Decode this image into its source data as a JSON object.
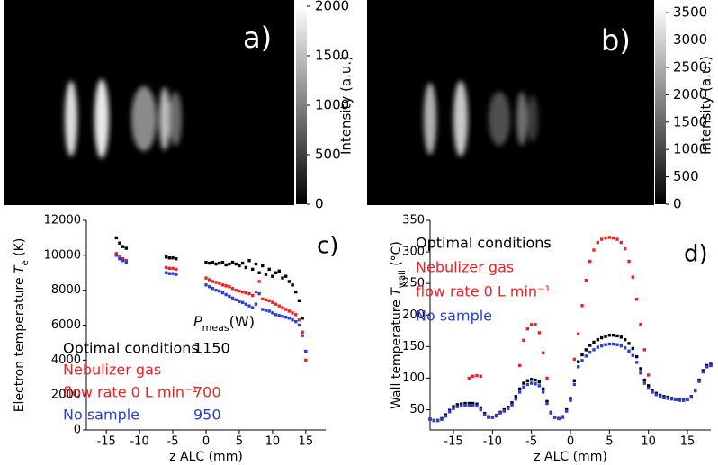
{
  "chart_data": [
    {
      "type": "image",
      "label": "a)",
      "colorbar_label": "Intensity (a.u.)",
      "clim": [
        0,
        2000
      ],
      "cticks": [
        0,
        500,
        1000,
        1500,
        2000
      ]
    },
    {
      "type": "image",
      "label": "b)",
      "colorbar_label": "Intensity (a.u.)",
      "clim": [
        0,
        3650
      ],
      "cticks": [
        0,
        500,
        1000,
        1500,
        2000,
        2500,
        3000,
        3500
      ]
    },
    {
      "type": "scatter",
      "label": "c)",
      "xlabel": "z ALC (mm)",
      "ylabel": [
        "Electron temperature ",
        "T",
        "e",
        " (K)"
      ],
      "power_header": [
        "P",
        "meas",
        "(W)"
      ],
      "xlim": [
        -18,
        18
      ],
      "ylim": [
        0,
        12000
      ],
      "xticks": [
        -15,
        -10,
        -5,
        0,
        5,
        10,
        15
      ],
      "yticks": [
        0,
        2000,
        4000,
        6000,
        8000,
        10000,
        12000
      ],
      "x": [
        -13.5,
        -13,
        -12.5,
        -12,
        -6,
        -5.5,
        -5,
        -4.5,
        0,
        0.5,
        1,
        1.5,
        2,
        2.5,
        3,
        3.5,
        4,
        4.5,
        5,
        5.5,
        6,
        6.5,
        7,
        7.5,
        8,
        8.5,
        9,
        9.5,
        10,
        10.5,
        11,
        11.5,
        12,
        12.5,
        13,
        13.5,
        14,
        14.5,
        15
      ],
      "series": [
        {
          "name": [
            "Optimal conditions"
          ],
          "color": "#000000",
          "power": 1150,
          "values": [
            11000,
            10700,
            10500,
            10400,
            9900,
            9850,
            9850,
            9800,
            9600,
            9550,
            9600,
            9500,
            9550,
            9600,
            9450,
            9500,
            9600,
            9500,
            9400,
            9550,
            9300,
            9700,
            9200,
            9500,
            9000,
            9400,
            8900,
            9200,
            8800,
            9000,
            9100,
            8700,
            8800,
            8500,
            8300,
            7900,
            7400,
            6400,
            4500
          ]
        },
        {
          "name": [
            "Nebulizer gas",
            "flow rate 0 L min⁻¹"
          ],
          "color": "#ee2222",
          "power": 700,
          "values": [
            10100,
            9900,
            9800,
            9700,
            9300,
            9250,
            9250,
            9200,
            8700,
            8600,
            8500,
            8450,
            8400,
            8300,
            8250,
            8200,
            8100,
            8000,
            7950,
            7900,
            7850,
            7800,
            7700,
            7900,
            8500,
            7500,
            7450,
            7400,
            7300,
            7200,
            7100,
            7000,
            6900,
            6800,
            6700,
            6600,
            6300,
            5600,
            4000
          ]
        },
        {
          "name": [
            "No sample"
          ],
          "color": "#2a3fd6",
          "power": 950,
          "values": [
            10000,
            9800,
            9700,
            9600,
            9000,
            8950,
            8950,
            8900,
            8300,
            8200,
            8100,
            8000,
            7950,
            7850,
            7750,
            7650,
            7550,
            7450,
            7350,
            7300,
            7200,
            7100,
            7000,
            7200,
            7800,
            6900,
            6850,
            6800,
            6700,
            6600,
            6550,
            6500,
            6450,
            6400,
            6300,
            6200,
            6000,
            5400,
            4500
          ]
        }
      ]
    },
    {
      "type": "scatter",
      "label": "d)",
      "xlabel": "z ALC (mm)",
      "ylabel": [
        "Wall temperature ",
        "T",
        "wall",
        " (°C)"
      ],
      "xlim": [
        -18,
        18
      ],
      "ylim": [
        18,
        350
      ],
      "xticks": [
        -15,
        -10,
        -5,
        0,
        5,
        10,
        15
      ],
      "yticks": [
        50,
        100,
        150,
        200,
        250,
        300,
        350
      ],
      "x": [
        -18,
        -17.5,
        -17,
        -16.5,
        -16,
        -15.5,
        -15,
        -14.5,
        -14,
        -13.5,
        -13,
        -12.5,
        -12,
        -11.5,
        -11,
        -10.5,
        -10,
        -9.5,
        -9,
        -8.5,
        -8,
        -7.5,
        -7,
        -6.5,
        -6,
        -5.5,
        -5,
        -4.5,
        -4,
        -3.5,
        -3,
        -2.5,
        -2,
        -1.5,
        -1,
        -0.5,
        0,
        0.5,
        1,
        1.5,
        2,
        2.5,
        3,
        3.5,
        4,
        4.5,
        5,
        5.5,
        6,
        6.5,
        7,
        7.5,
        8,
        8.5,
        9,
        9.5,
        10,
        10.5,
        11,
        11.5,
        12,
        12.5,
        13,
        13.5,
        14,
        14.5,
        15,
        15.5,
        16,
        16.5,
        17,
        17.5,
        18
      ],
      "series": [
        {
          "name": [
            "Optimal conditions"
          ],
          "color": "#000000",
          "values": [
            35,
            33,
            33,
            36,
            42,
            49,
            55,
            58,
            59,
            60,
            60,
            60,
            59,
            53,
            44,
            39,
            38,
            41,
            46,
            50,
            54,
            61,
            71,
            83,
            92,
            96,
            98,
            97,
            94,
            83,
            63,
            46,
            38,
            36,
            39,
            50,
            68,
            96,
            126,
            137,
            145,
            152,
            157,
            161,
            164,
            166,
            168,
            168,
            167,
            165,
            161,
            155,
            147,
            134,
            115,
            97,
            88,
            81,
            76,
            73,
            71,
            70,
            68,
            67,
            66,
            66,
            67,
            71,
            81,
            97,
            112,
            120,
            122
          ]
        },
        {
          "name": [
            "Nebulizer gas",
            "flow rate 0 L min⁻¹"
          ],
          "color": "#ee2222",
          "values": [
            35,
            33,
            33,
            35,
            40,
            47,
            52,
            55,
            56,
            57,
            100,
            103,
            104,
            103,
            42,
            38,
            38,
            40,
            45,
            48,
            52,
            58,
            67,
            120,
            160,
            178,
            185,
            185,
            172,
            140,
            100,
            45,
            38,
            36,
            38,
            48,
            65,
            130,
            170,
            215,
            255,
            285,
            303,
            315,
            320,
            322,
            323,
            322,
            320,
            315,
            305,
            285,
            260,
            225,
            185,
            145,
            105,
            78,
            74,
            71,
            69,
            68,
            67,
            66,
            65,
            65,
            66,
            70,
            80,
            95,
            110,
            118,
            120
          ]
        },
        {
          "name": [
            "No sample"
          ],
          "color": "#2a3fd6",
          "values": [
            35,
            33,
            33,
            35,
            40,
            47,
            52,
            55,
            56,
            57,
            57,
            57,
            56,
            50,
            42,
            38,
            38,
            40,
            45,
            48,
            52,
            58,
            67,
            78,
            86,
            90,
            92,
            91,
            88,
            78,
            60,
            45,
            38,
            36,
            38,
            48,
            65,
            90,
            118,
            128,
            135,
            141,
            145,
            149,
            151,
            153,
            154,
            154,
            153,
            151,
            148,
            143,
            136,
            125,
            108,
            92,
            84,
            78,
            74,
            71,
            69,
            68,
            67,
            66,
            65,
            65,
            66,
            70,
            80,
            95,
            110,
            118,
            120
          ]
        }
      ]
    }
  ]
}
